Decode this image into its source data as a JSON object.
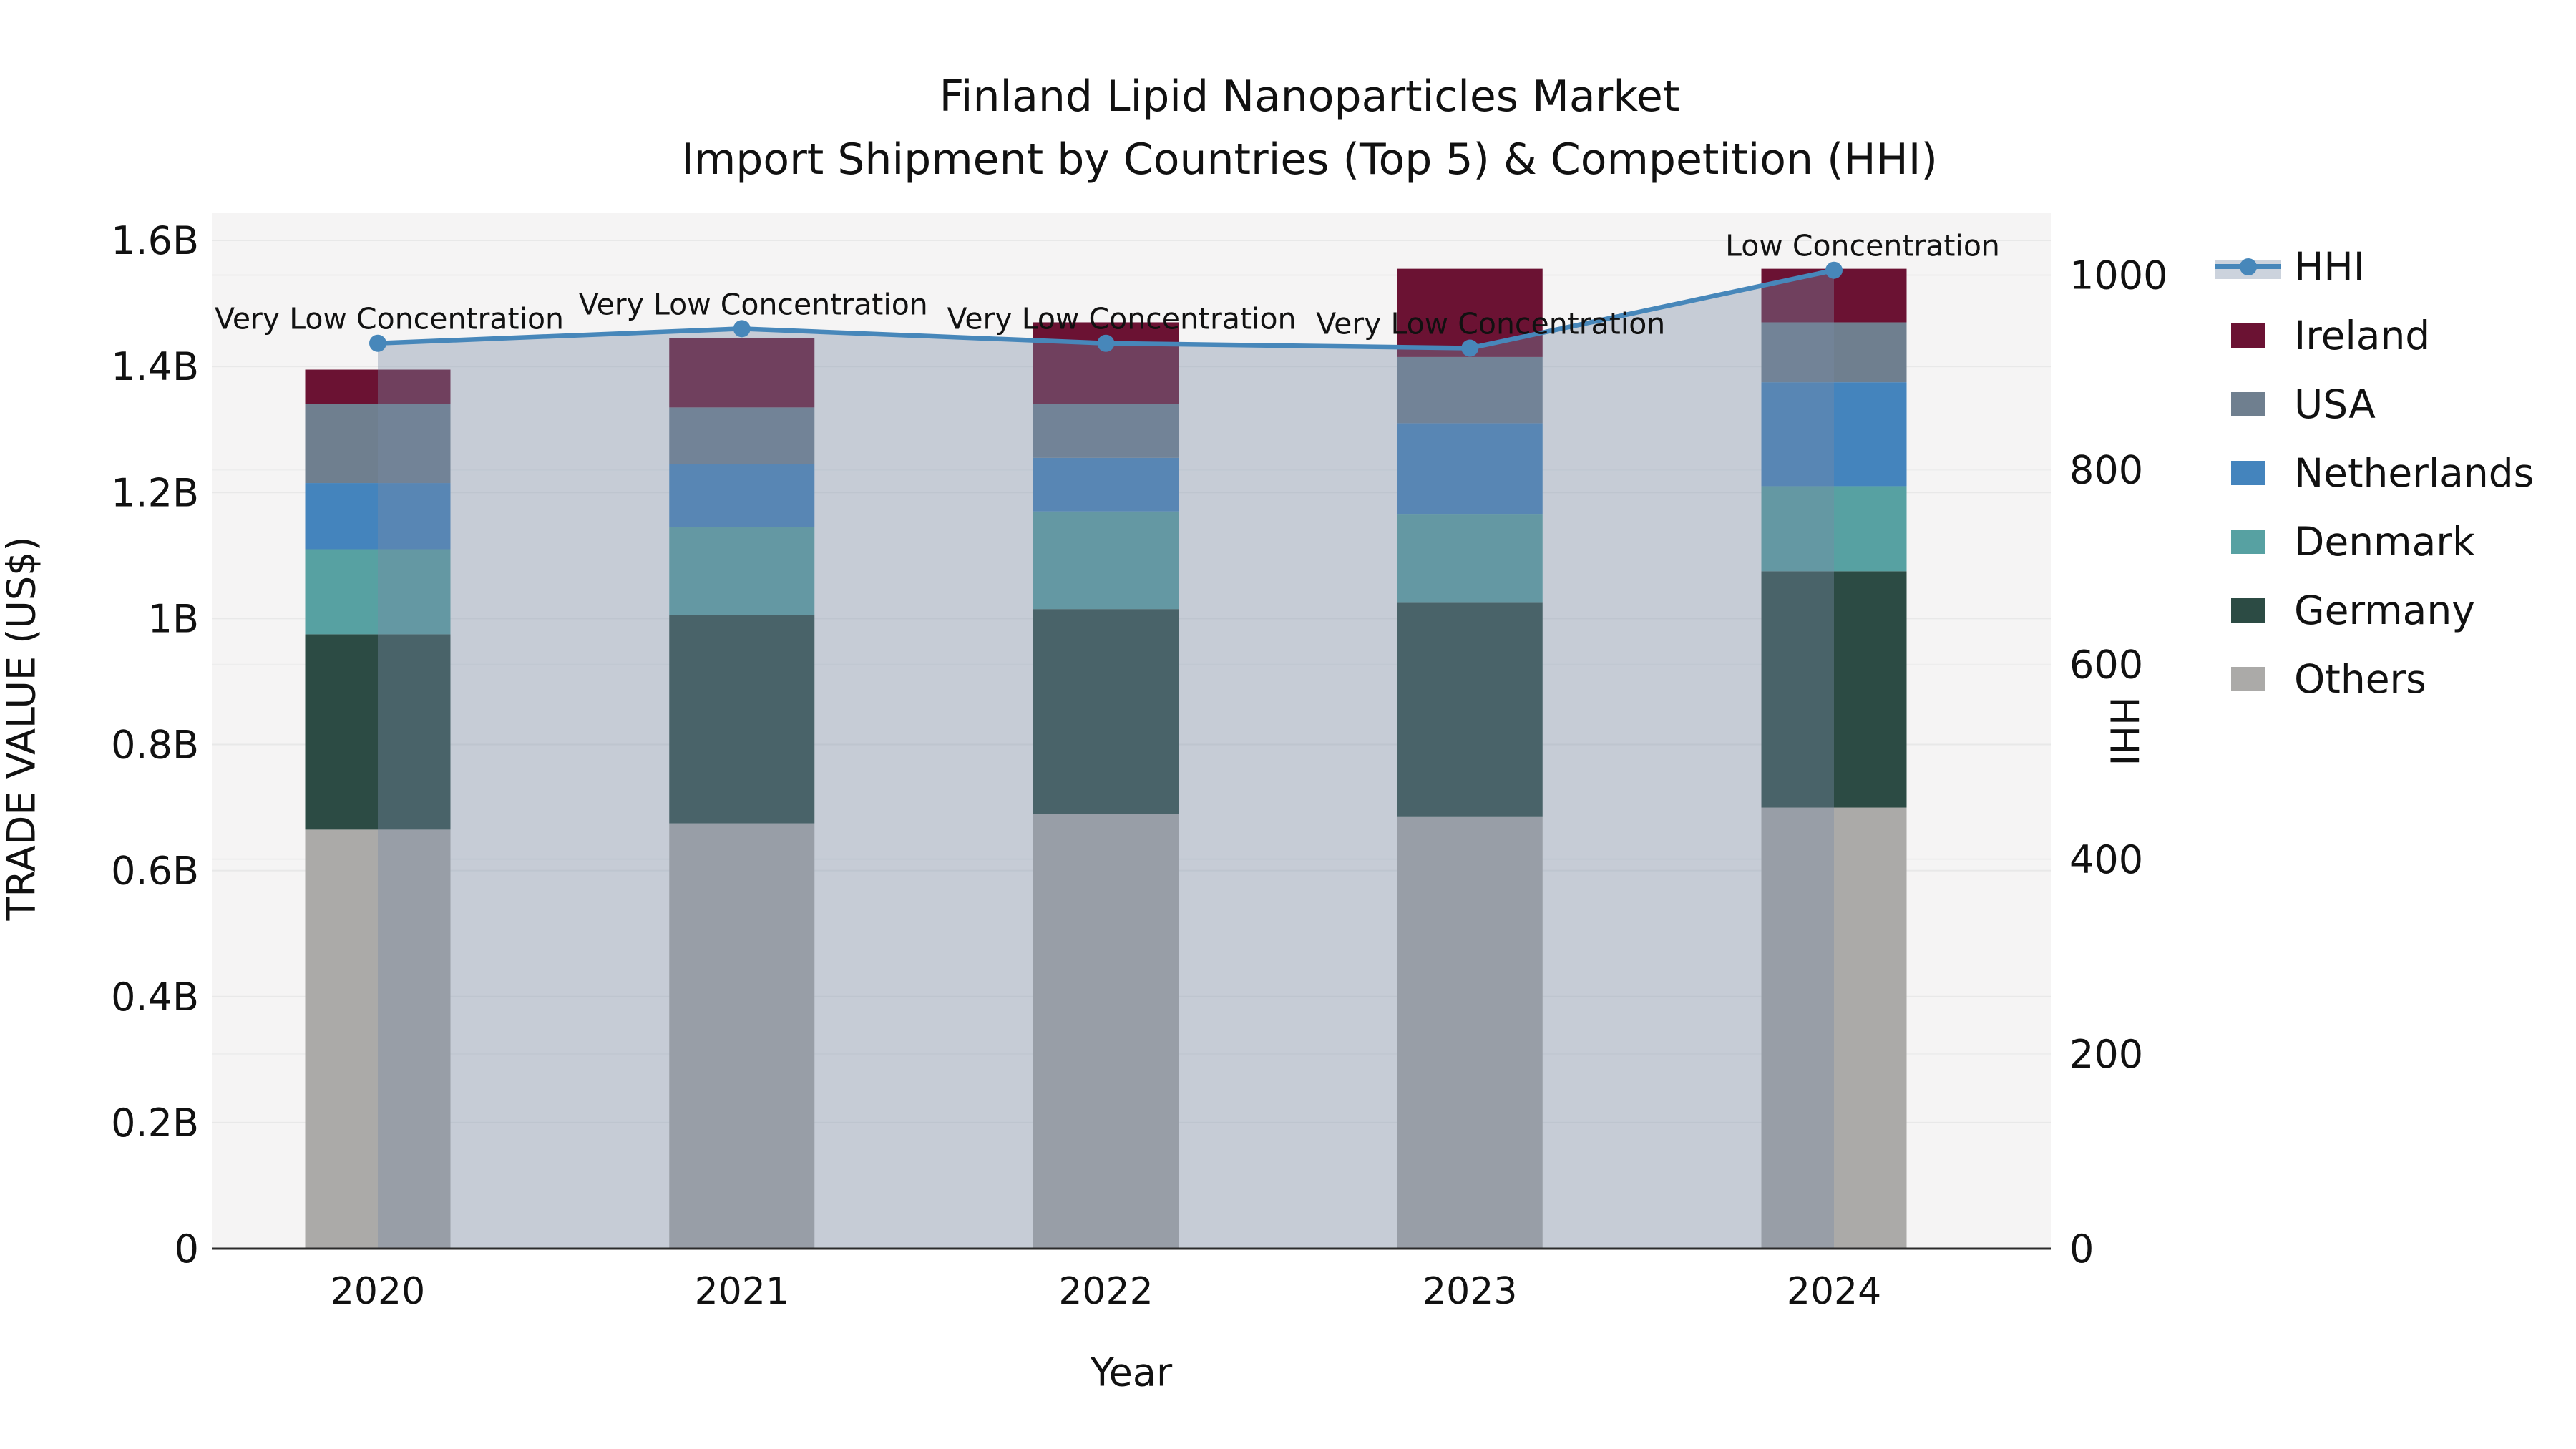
{
  "title": {
    "line1": "Finland Lipid Nanoparticles Market",
    "line2": "Import Shipment by Countries (Top 5) & Competition (HHI)"
  },
  "axes": {
    "x_label": "Year",
    "y_left_label": "TRADE VALUE (US$)",
    "y_right_label": "HHI",
    "x_tick_labels": [
      "2020",
      "2021",
      "2022",
      "2023",
      "2024"
    ],
    "y_left_tick_labels": [
      "0",
      "0.2B",
      "0.4B",
      "0.6B",
      "0.8B",
      "1B",
      "1.2B",
      "1.4B",
      "1.6B"
    ],
    "y_right_tick_labels": [
      "0",
      "200",
      "400",
      "600",
      "800",
      "1000"
    ]
  },
  "legend": {
    "items": [
      {
        "label": "HHI",
        "type": "line",
        "color": "#4787BA"
      },
      {
        "label": "Ireland",
        "type": "swatch",
        "color": "#6B1233"
      },
      {
        "label": "USA",
        "type": "swatch",
        "color": "#6F7F8F"
      },
      {
        "label": "Netherlands",
        "type": "swatch",
        "color": "#4484BD"
      },
      {
        "label": "Denmark",
        "type": "swatch",
        "color": "#57A1A2"
      },
      {
        "label": "Germany",
        "type": "swatch",
        "color": "#2C4B44"
      },
      {
        "label": "Others",
        "type": "swatch",
        "color": "#ABAAA8"
      }
    ]
  },
  "chart_data": {
    "type": "combo-stacked-bar-line",
    "categories": [
      "2020",
      "2021",
      "2022",
      "2023",
      "2024"
    ],
    "stack_order_bottom_to_top": [
      "Others",
      "Germany",
      "Denmark",
      "Netherlands",
      "USA",
      "Ireland"
    ],
    "series": [
      {
        "name": "Others",
        "color": "#ABAAA8",
        "values_billion_usd": [
          0.665,
          0.675,
          0.69,
          0.685,
          0.7
        ]
      },
      {
        "name": "Germany",
        "color": "#2C4B44",
        "values_billion_usd": [
          0.31,
          0.33,
          0.325,
          0.34,
          0.375
        ]
      },
      {
        "name": "Denmark",
        "color": "#57A1A2",
        "values_billion_usd": [
          0.135,
          0.14,
          0.155,
          0.14,
          0.135
        ]
      },
      {
        "name": "Netherlands",
        "color": "#4484BD",
        "values_billion_usd": [
          0.105,
          0.1,
          0.085,
          0.145,
          0.165
        ]
      },
      {
        "name": "USA",
        "color": "#6F7F8F",
        "values_billion_usd": [
          0.125,
          0.09,
          0.085,
          0.105,
          0.095
        ]
      },
      {
        "name": "Ireland",
        "color": "#6B1233",
        "values_billion_usd": [
          0.055,
          0.11,
          0.13,
          0.14,
          0.085
        ]
      }
    ],
    "bar_totals_billion_usd": [
      1.395,
      1.445,
      1.47,
      1.555,
      1.555
    ],
    "line_series": {
      "name": "HHI",
      "axis": "right",
      "color": "#4787BA",
      "area_fill": "rgba(122,140,166,0.38)",
      "values": [
        930,
        945,
        930,
        925,
        1005
      ]
    },
    "annotations": [
      {
        "category": "2020",
        "text": "Very Low Concentration"
      },
      {
        "category": "2021",
        "text": "Very Low Concentration"
      },
      {
        "category": "2022",
        "text": "Very Low Concentration"
      },
      {
        "category": "2023",
        "text": "Very Low Concentration"
      },
      {
        "category": "2024",
        "text": "Low Concentration"
      }
    ],
    "y_left_range_billion": [
      0,
      1.6
    ],
    "y_right_range": [
      0,
      1000
    ],
    "grid": true,
    "legend_position": "right"
  },
  "colors": {
    "page_bg": "#FFFFFF",
    "plot_bg": "#F5F4F4",
    "grid_left": "#E8E8E8",
    "grid_right": "#EDEDED",
    "axis_line": "#2B2B2B",
    "text": "#111111"
  }
}
